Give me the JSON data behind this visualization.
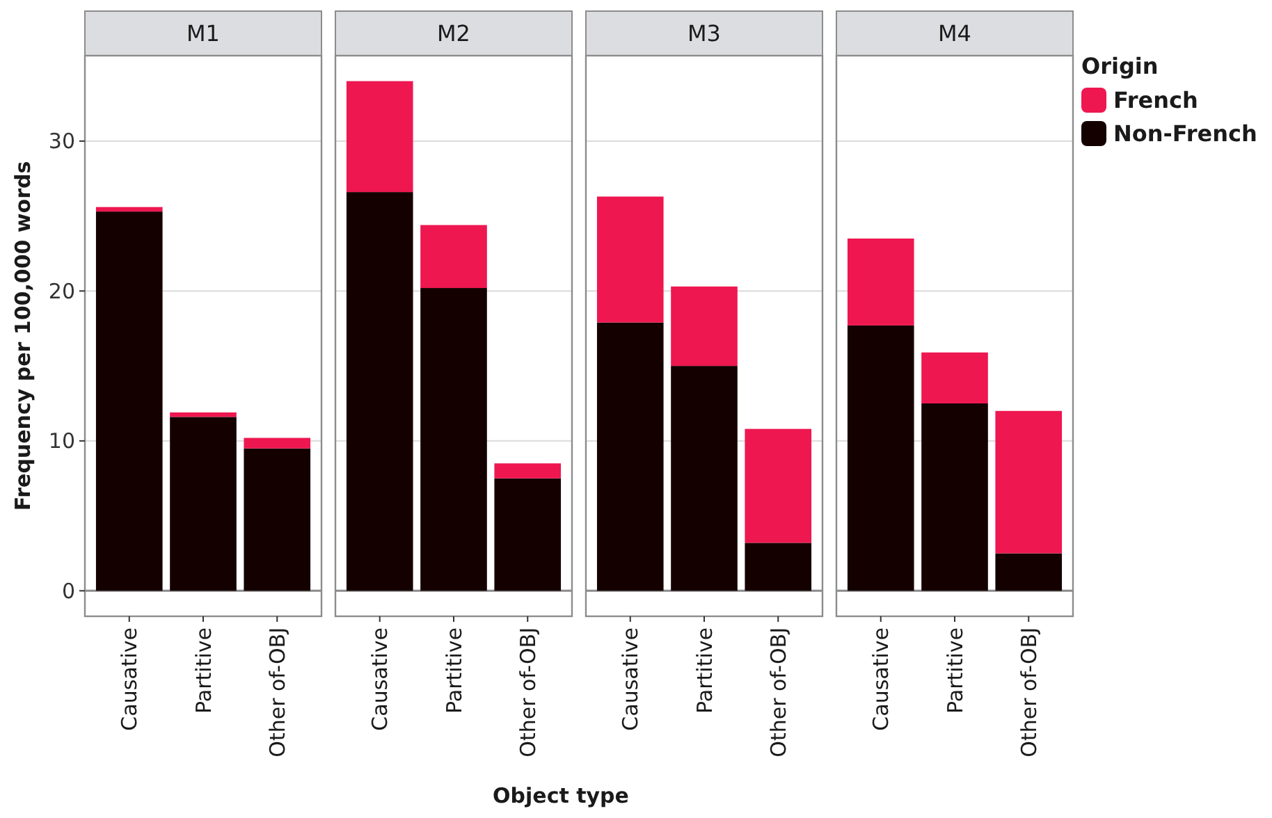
{
  "chart_data": [
    {
      "type": "bar",
      "title": "M1",
      "stacked": true,
      "categories": [
        "Causative",
        "Partitive",
        "Other of-OBJ"
      ],
      "ylabel": "Frequency per 100,000 words",
      "ylim": [
        -1.7,
        35.7
      ],
      "yticks": [
        0,
        10,
        20,
        30
      ],
      "grid": "y",
      "ref_lines": [
        {
          "axis": "y",
          "value": 0,
          "color": "#8c8c8c"
        }
      ],
      "series": [
        {
          "color": "#150000",
          "values": [
            25.3,
            11.6,
            9.5
          ]
        },
        {
          "color": "#ee1750",
          "values": [
            0.3,
            0.3,
            0.7
          ]
        }
      ]
    },
    {
      "type": "bar",
      "title": "M2",
      "xlabel": "Object type",
      "stacked": true,
      "categories": [
        "Causative",
        "Partitive",
        "Other of-OBJ"
      ],
      "ylim": [
        -1.7,
        35.7
      ],
      "yticks": [
        0,
        10,
        20,
        30
      ],
      "grid": "y",
      "tick_labels": "x",
      "ref_lines": [
        {
          "axis": "y",
          "value": 0,
          "color": "#8c8c8c"
        }
      ],
      "series": [
        {
          "color": "#150000",
          "values": [
            26.6,
            20.2,
            7.5
          ]
        },
        {
          "color": "#ee1750",
          "values": [
            7.4,
            4.2,
            1.0
          ]
        }
      ]
    },
    {
      "type": "bar",
      "title": "M3",
      "stacked": true,
      "categories": [
        "Causative",
        "Partitive",
        "Other of-OBJ"
      ],
      "ylim": [
        -1.7,
        35.7
      ],
      "yticks": [
        0,
        10,
        20,
        30
      ],
      "grid": "y",
      "tick_labels": "x",
      "ref_lines": [
        {
          "axis": "y",
          "value": 0,
          "color": "#8c8c8c"
        }
      ],
      "series": [
        {
          "color": "#150000",
          "values": [
            17.9,
            15.0,
            3.2
          ]
        },
        {
          "color": "#ee1750",
          "values": [
            8.4,
            5.3,
            7.6
          ]
        }
      ]
    },
    {
      "type": "bar",
      "title": "M4",
      "stacked": true,
      "categories": [
        "Causative",
        "Partitive",
        "Other of-OBJ"
      ],
      "ylim": [
        -1.7,
        35.7
      ],
      "yticks": [
        0,
        10,
        20,
        30
      ],
      "grid": "y",
      "tick_labels": "x",
      "legend": "right",
      "legend_title": "Origin",
      "ref_lines": [
        {
          "axis": "y",
          "value": 0,
          "color": "#8c8c8c"
        }
      ],
      "series": [
        {
          "name": "Non-French",
          "color": "#150000",
          "values": [
            17.7,
            12.5,
            2.5
          ]
        },
        {
          "name": "French",
          "color": "#ee1750",
          "values": [
            5.8,
            3.4,
            9.5
          ]
        }
      ]
    }
  ]
}
